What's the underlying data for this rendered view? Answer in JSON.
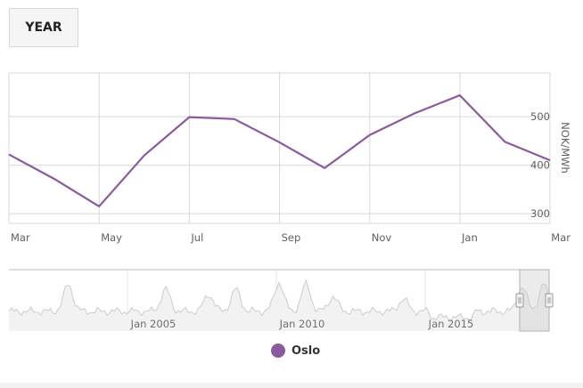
{
  "range_button": {
    "label": "YEAR"
  },
  "colors": {
    "series": "#8a5a9e",
    "grid": "#d9d9d9",
    "navigator_fill": "#f2f2f2",
    "navigator_line": "#cccccc"
  },
  "chart_data": {
    "type": "line",
    "xlabel": "",
    "ylabel": "NOK/MWh",
    "x_tick_labels": [
      "Mar",
      "May",
      "Jul",
      "Sep",
      "Nov",
      "Jan",
      "Mar"
    ],
    "y_tick_labels": [
      "300",
      "400",
      "500"
    ],
    "ylim": [
      280,
      590
    ],
    "grid": true,
    "series": [
      {
        "name": "Oslo",
        "x": [
          "Mar",
          "Apr",
          "May",
          "Jun",
          "Jul",
          "Aug",
          "Sep",
          "Oct",
          "Nov",
          "Dec",
          "Jan",
          "Feb",
          "Mar"
        ],
        "values": [
          422,
          372,
          315,
          420,
          499,
          495,
          447,
          394,
          462,
          507,
          544,
          448,
          410
        ]
      }
    ],
    "navigator": {
      "x_tick_labels": [
        "Jan 2005",
        "Jan 2010",
        "Jan 2015"
      ],
      "selection": "last year"
    },
    "legend": {
      "position": "bottom-center",
      "entries": [
        "Oslo"
      ]
    }
  }
}
